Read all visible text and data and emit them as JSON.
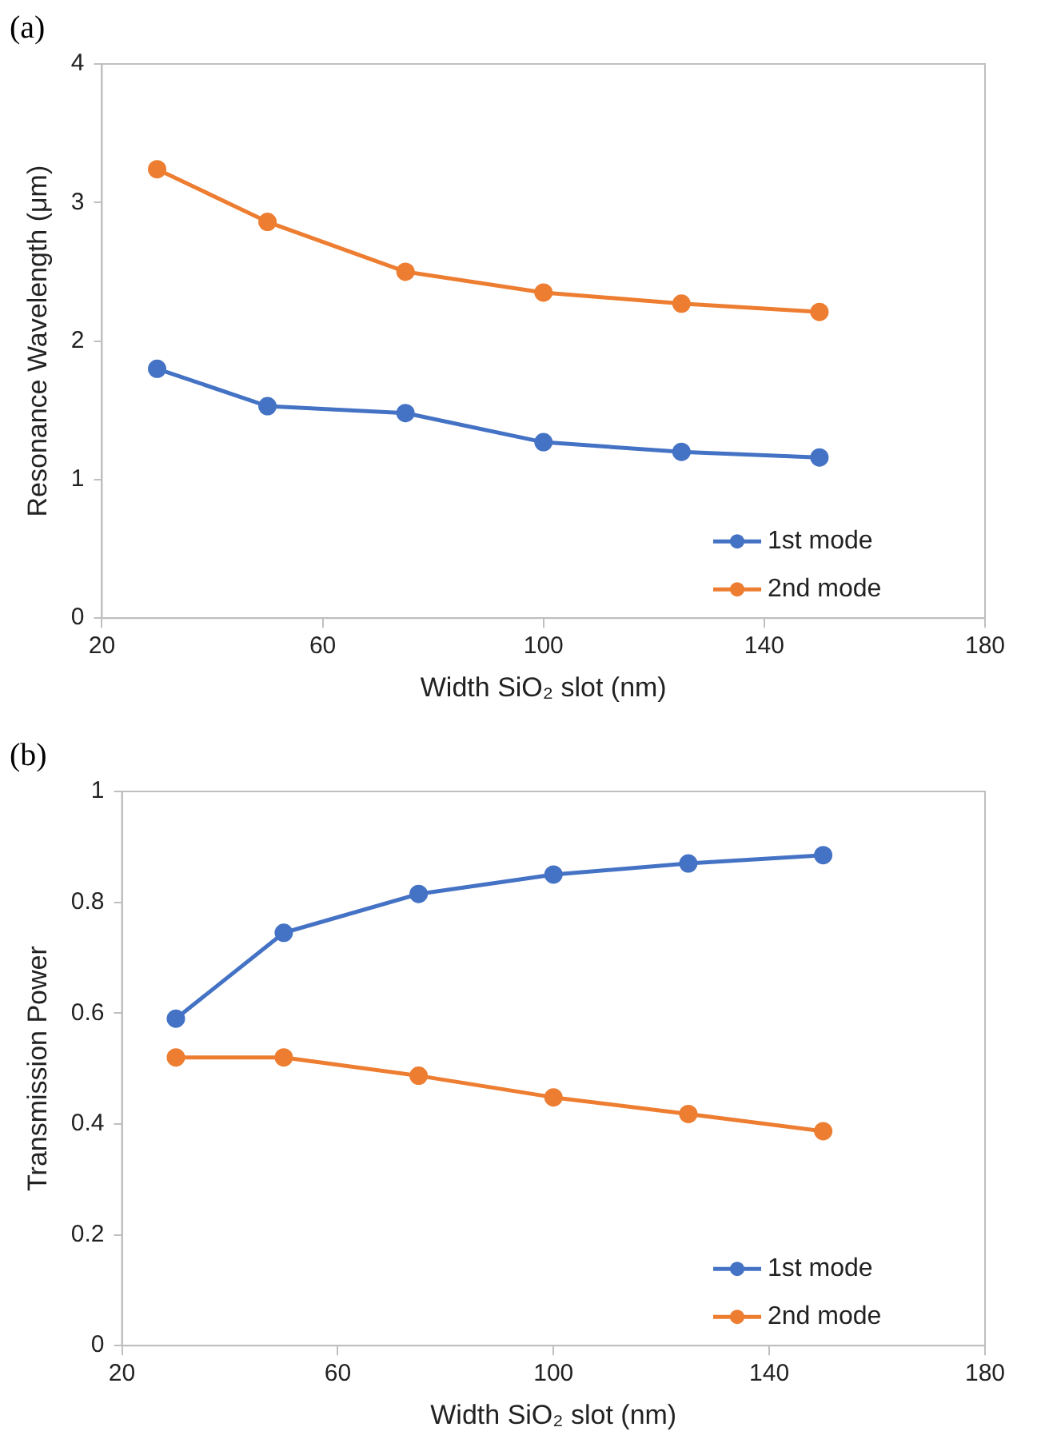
{
  "chart_data": [
    {
      "type": "line",
      "annotations": [
        "(a)"
      ],
      "xlabel": "Width SiO₂ slot (nm)",
      "ylabel": "Resonance Wavelength (μm)",
      "x": [
        30,
        50,
        75,
        100,
        125,
        150
      ],
      "series": [
        {
          "name": "1st mode",
          "color": "#4472c4",
          "values": [
            1.8,
            1.53,
            1.48,
            1.27,
            1.2,
            1.16
          ]
        },
        {
          "name": "2nd mode",
          "color": "#ed7d31",
          "values": [
            3.24,
            2.86,
            2.5,
            2.35,
            2.27,
            2.21
          ]
        }
      ],
      "xlim": [
        20,
        180
      ],
      "xticks": [
        20,
        60,
        100,
        140,
        180
      ],
      "ylim": [
        0,
        4
      ],
      "yticks": [
        0,
        1,
        2,
        3,
        4
      ],
      "grid": false,
      "legend": "bottom right",
      "marker": "circle",
      "line_style": "solid"
    },
    {
      "type": "line",
      "annotations": [
        "(b)"
      ],
      "xlabel": "Width SiO₂ slot (nm)",
      "ylabel": "Transmission Power",
      "x": [
        30,
        50,
        75,
        100,
        125,
        150
      ],
      "series": [
        {
          "name": "1st mode",
          "color": "#4472c4",
          "values": [
            0.59,
            0.745,
            0.815,
            0.85,
            0.87,
            0.885
          ]
        },
        {
          "name": "2nd mode",
          "color": "#ed7d31",
          "values": [
            0.52,
            0.52,
            0.487,
            0.448,
            0.418,
            0.387
          ]
        }
      ],
      "xlim": [
        20,
        180
      ],
      "xticks": [
        20,
        60,
        100,
        140,
        180
      ],
      "ylim": [
        0,
        1
      ],
      "yticks": [
        0,
        0.2,
        0.4,
        0.6,
        0.8,
        1
      ],
      "grid": false,
      "legend": "bottom right",
      "marker": "circle",
      "line_style": "solid"
    }
  ]
}
